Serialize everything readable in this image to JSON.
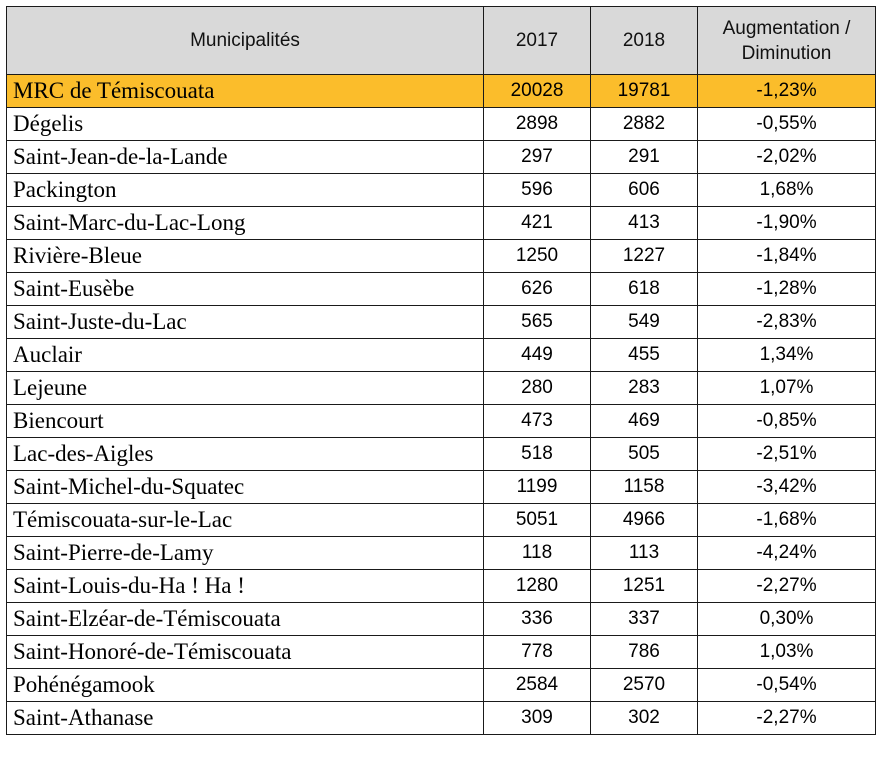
{
  "table": {
    "headers": {
      "municipalites": "Municipalités",
      "year_2017": "2017",
      "year_2018": "2018",
      "change_line1": "Augmentation /",
      "change_line2": "Diminution"
    },
    "highlight_color": "#fbbd2b",
    "header_color": "#d9d9d9",
    "rows": [
      {
        "name": "MRC de Témiscouata",
        "y2017": "20028",
        "y2018": "19781",
        "change": "-1,23%",
        "highlight": true
      },
      {
        "name": "Dégelis",
        "y2017": "2898",
        "y2018": "2882",
        "change": "-0,55%"
      },
      {
        "name": "Saint-Jean-de-la-Lande",
        "y2017": "297",
        "y2018": "291",
        "change": "-2,02%"
      },
      {
        "name": "Packington",
        "y2017": "596",
        "y2018": "606",
        "change": "1,68%"
      },
      {
        "name": "Saint-Marc-du-Lac-Long",
        "y2017": "421",
        "y2018": "413",
        "change": "-1,90%"
      },
      {
        "name": "Rivière-Bleue",
        "y2017": "1250",
        "y2018": "1227",
        "change": "-1,84%"
      },
      {
        "name": "Saint-Eusèbe",
        "y2017": "626",
        "y2018": "618",
        "change": "-1,28%"
      },
      {
        "name": "Saint-Juste-du-Lac",
        "y2017": "565",
        "y2018": "549",
        "change": "-2,83%"
      },
      {
        "name": "Auclair",
        "y2017": "449",
        "y2018": "455",
        "change": "1,34%"
      },
      {
        "name": "Lejeune",
        "y2017": "280",
        "y2018": "283",
        "change": "1,07%"
      },
      {
        "name": "Biencourt",
        "y2017": "473",
        "y2018": "469",
        "change": "-0,85%"
      },
      {
        "name": "Lac-des-Aigles",
        "y2017": "518",
        "y2018": "505",
        "change": "-2,51%"
      },
      {
        "name": "Saint-Michel-du-Squatec",
        "y2017": "1199",
        "y2018": "1158",
        "change": "-3,42%"
      },
      {
        "name": "Témiscouata-sur-le-Lac",
        "y2017": "5051",
        "y2018": "4966",
        "change": "-1,68%"
      },
      {
        "name": "Saint-Pierre-de-Lamy",
        "y2017": "118",
        "y2018": "113",
        "change": "-4,24%"
      },
      {
        "name": "Saint-Louis-du-Ha ! Ha !",
        "y2017": "1280",
        "y2018": "1251",
        "change": "-2,27%"
      },
      {
        "name": "Saint-Elzéar-de-Témiscouata",
        "y2017": "336",
        "y2018": "337",
        "change": "0,30%"
      },
      {
        "name": "Saint-Honoré-de-Témiscouata",
        "y2017": "778",
        "y2018": "786",
        "change": "1,03%"
      },
      {
        "name": "Pohénégamook",
        "y2017": "2584",
        "y2018": "2570",
        "change": "-0,54%"
      },
      {
        "name": "Saint-Athanase",
        "y2017": "309",
        "y2018": "302",
        "change": "-2,27%"
      }
    ]
  }
}
